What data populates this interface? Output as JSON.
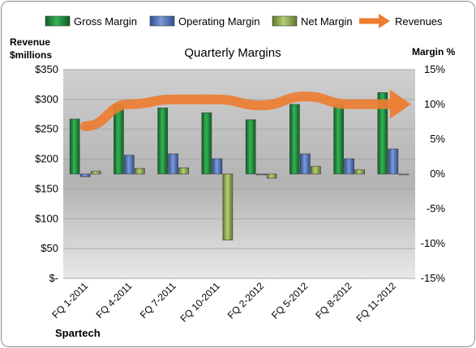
{
  "chart_data": {
    "type": "bar",
    "title": "Quarterly Margins",
    "company": "Spartech",
    "ylabel_left": [
      "Revenue",
      "$millions"
    ],
    "ylabel_right": "Margin %",
    "categories": [
      "FQ 1-2011",
      "FQ 4-2011",
      "FQ 7-2011",
      "FQ 10-2011",
      "FQ 2-2012",
      "FQ 5-2012",
      "FQ 8-2012",
      "FQ 11-2012"
    ],
    "left_axis": {
      "min": 0,
      "max": 350,
      "step": 50,
      "ticks": [
        "$-",
        "$50",
        "$100",
        "$150",
        "$200",
        "$250",
        "$300",
        "$350"
      ]
    },
    "right_axis": {
      "min": -15,
      "max": 15,
      "step": 5,
      "ticks": [
        "-15%",
        "-10%",
        "-5%",
        "0%",
        "5%",
        "10%",
        "15%"
      ]
    },
    "series": [
      {
        "name": "Gross Margin",
        "axis": "right",
        "kind": "bar",
        "color": "#1f8a3c",
        "values": [
          7.9,
          10.0,
          9.5,
          8.8,
          7.8,
          10.0,
          9.9,
          11.7
        ]
      },
      {
        "name": "Operating Margin",
        "axis": "right",
        "kind": "bar",
        "color": "#4a6fb5",
        "values": [
          -0.4,
          2.7,
          2.9,
          2.2,
          -0.1,
          2.9,
          2.2,
          3.6
        ]
      },
      {
        "name": "Net Margin",
        "axis": "right",
        "kind": "bar",
        "color": "#8aab4c",
        "values": [
          0.4,
          0.8,
          0.9,
          -9.5,
          -0.6,
          1.1,
          0.6,
          -0.1
        ]
      },
      {
        "name": "Revenues",
        "axis": "left",
        "kind": "line",
        "color": "#ed7d31",
        "values": [
          255,
          292,
          300,
          300,
          290,
          305,
          292,
          292
        ]
      }
    ],
    "legend_position": "top"
  }
}
